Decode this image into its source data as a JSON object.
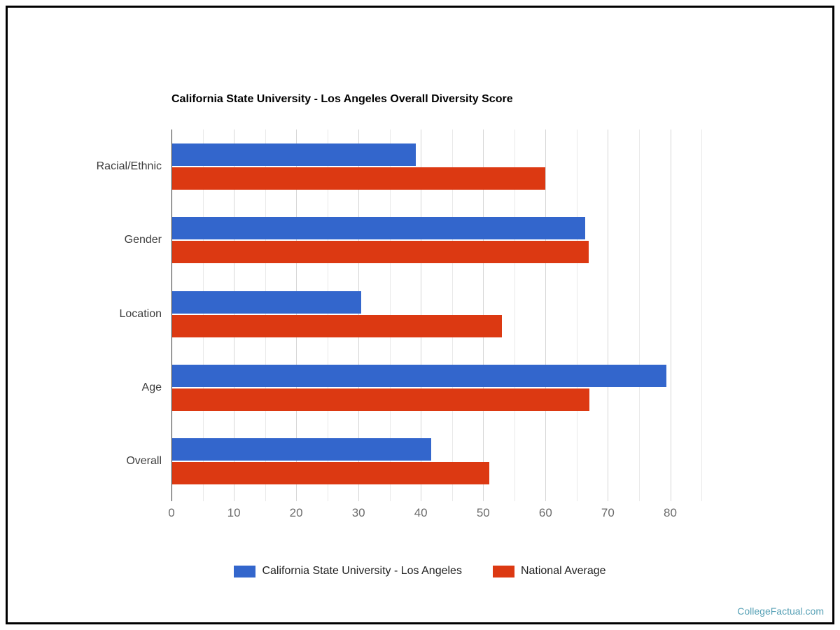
{
  "page": {
    "watermark": "CollegeFactual.com"
  },
  "chart_data": {
    "type": "bar",
    "orientation": "horizontal",
    "title": "California State University - Los Angeles Overall Diversity Score",
    "categories": [
      "Racial/Ethnic",
      "Gender",
      "Location",
      "Age",
      "Overall"
    ],
    "series": [
      {
        "name": "California State University - Los Angeles",
        "color": "#3366cc",
        "values": [
          39.2,
          66.4,
          30.4,
          79.4,
          41.6
        ]
      },
      {
        "name": "National Average",
        "color": "#dc3912",
        "values": [
          60,
          66.9,
          53,
          67,
          51
        ]
      }
    ],
    "xlabel": "",
    "ylabel": "",
    "xlim": [
      0,
      85
    ],
    "xticks": [
      0,
      10,
      20,
      30,
      40,
      50,
      60,
      70,
      80
    ],
    "grid": {
      "on": true,
      "step": 5,
      "major_every": 10
    },
    "legend_position": "bottom"
  },
  "colors": {
    "background": "#ffffff",
    "frame": "#000000",
    "axis": "#333333",
    "grid_major": "#d6d6d6",
    "grid_minor": "#e9e9e9",
    "title": "#000000",
    "category_label": "#3d3d3d",
    "tick_label": "#6b6b6b",
    "legend_label": "#222222",
    "watermark": "#56a0b5"
  }
}
